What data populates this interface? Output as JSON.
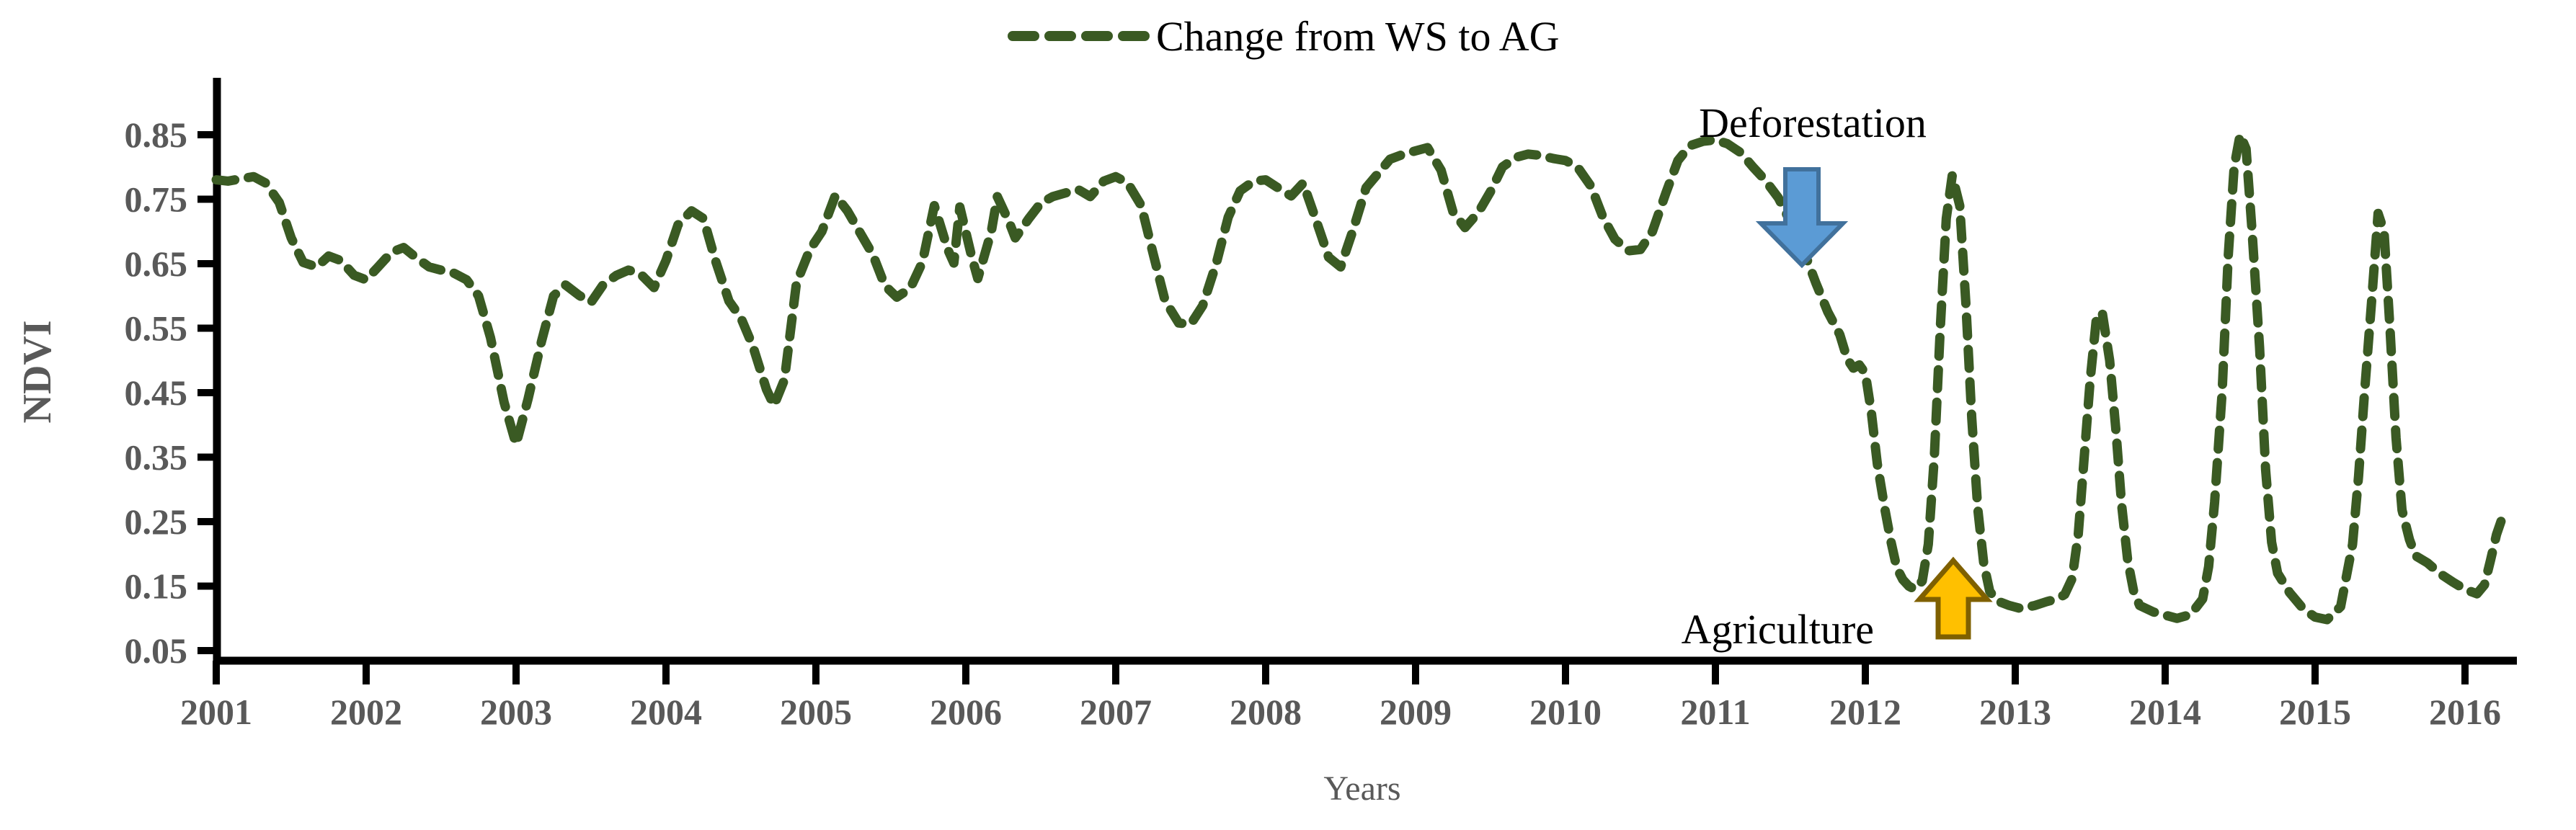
{
  "chart_data": {
    "type": "line",
    "title": "",
    "legend_label": "Change from WS to AG",
    "legend_position": "top-center",
    "xlabel": "Years",
    "ylabel": "NDVI",
    "xtick_labels": [
      "2001",
      "2002",
      "2003",
      "2004",
      "2005",
      "2006",
      "2007",
      "2008",
      "2009",
      "2010",
      "2011",
      "2012",
      "2013",
      "2014",
      "2015",
      "2016"
    ],
    "ytick_labels": [
      "0.85",
      "0.75",
      "0.65",
      "0.55",
      "0.45",
      "0.35",
      "0.25",
      "0.15",
      "0.05"
    ],
    "xlim": [
      2001,
      2016.4
    ],
    "ylim": [
      0.03,
      0.94
    ],
    "grid": false,
    "colors": {
      "series": "#3a5a23",
      "axis": "#000000",
      "tick_text": "#595959",
      "annotation_text": "#000000"
    },
    "annotations": [
      {
        "label": "Deforestation",
        "arrow": "down",
        "at_year": 2011.6,
        "fill": "#5B9BD5",
        "stroke": "#41719C"
      },
      {
        "label": "Agriculture",
        "arrow": "up",
        "at_year": 2012.6,
        "fill": "#FFC000",
        "stroke": "#7F6000"
      }
    ],
    "series": [
      {
        "name": "Change from WS to AG",
        "style": "dashed",
        "points": [
          [
            2001.0,
            0.78
          ],
          [
            2001.08,
            0.778
          ],
          [
            2001.17,
            0.782
          ],
          [
            2001.25,
            0.785
          ],
          [
            2001.33,
            0.775
          ],
          [
            2001.42,
            0.745
          ],
          [
            2001.5,
            0.69
          ],
          [
            2001.58,
            0.652
          ],
          [
            2001.67,
            0.645
          ],
          [
            2001.75,
            0.662
          ],
          [
            2001.83,
            0.655
          ],
          [
            2001.92,
            0.632
          ],
          [
            2002.0,
            0.625
          ],
          [
            2002.08,
            0.645
          ],
          [
            2002.17,
            0.668
          ],
          [
            2002.25,
            0.675
          ],
          [
            2002.33,
            0.66
          ],
          [
            2002.42,
            0.645
          ],
          [
            2002.5,
            0.64
          ],
          [
            2002.58,
            0.636
          ],
          [
            2002.67,
            0.625
          ],
          [
            2002.75,
            0.6
          ],
          [
            2002.83,
            0.535
          ],
          [
            2002.92,
            0.435
          ],
          [
            2003.0,
            0.37
          ],
          [
            2003.08,
            0.44
          ],
          [
            2003.17,
            0.53
          ],
          [
            2003.25,
            0.6
          ],
          [
            2003.33,
            0.617
          ],
          [
            2003.42,
            0.601
          ],
          [
            2003.5,
            0.59
          ],
          [
            2003.58,
            0.617
          ],
          [
            2003.67,
            0.632
          ],
          [
            2003.75,
            0.64
          ],
          [
            2003.83,
            0.634
          ],
          [
            2003.92,
            0.613
          ],
          [
            2004.0,
            0.655
          ],
          [
            2004.08,
            0.71
          ],
          [
            2004.17,
            0.732
          ],
          [
            2004.25,
            0.72
          ],
          [
            2004.33,
            0.655
          ],
          [
            2004.42,
            0.592
          ],
          [
            2004.5,
            0.566
          ],
          [
            2004.58,
            0.522
          ],
          [
            2004.67,
            0.455
          ],
          [
            2004.72,
            0.43
          ],
          [
            2004.79,
            0.47
          ],
          [
            2004.87,
            0.62
          ],
          [
            2004.96,
            0.672
          ],
          [
            2005.04,
            0.7
          ],
          [
            2005.13,
            0.756
          ],
          [
            2005.21,
            0.732
          ],
          [
            2005.29,
            0.7
          ],
          [
            2005.38,
            0.664
          ],
          [
            2005.46,
            0.616
          ],
          [
            2005.54,
            0.598
          ],
          [
            2005.63,
            0.612
          ],
          [
            2005.71,
            0.652
          ],
          [
            2005.79,
            0.74
          ],
          [
            2005.88,
            0.672
          ],
          [
            2005.92,
            0.651
          ],
          [
            2005.96,
            0.738
          ],
          [
            2006.04,
            0.66
          ],
          [
            2006.08,
            0.627
          ],
          [
            2006.17,
            0.7
          ],
          [
            2006.21,
            0.754
          ],
          [
            2006.29,
            0.714
          ],
          [
            2006.33,
            0.69
          ],
          [
            2006.42,
            0.72
          ],
          [
            2006.5,
            0.744
          ],
          [
            2006.58,
            0.754
          ],
          [
            2006.67,
            0.76
          ],
          [
            2006.75,
            0.765
          ],
          [
            2006.83,
            0.754
          ],
          [
            2006.92,
            0.778
          ],
          [
            2007.0,
            0.785
          ],
          [
            2007.08,
            0.775
          ],
          [
            2007.17,
            0.74
          ],
          [
            2007.25,
            0.665
          ],
          [
            2007.33,
            0.592
          ],
          [
            2007.42,
            0.558
          ],
          [
            2007.5,
            0.556
          ],
          [
            2007.58,
            0.585
          ],
          [
            2007.67,
            0.65
          ],
          [
            2007.75,
            0.722
          ],
          [
            2007.83,
            0.763
          ],
          [
            2007.92,
            0.778
          ],
          [
            2008.0,
            0.78
          ],
          [
            2008.08,
            0.768
          ],
          [
            2008.17,
            0.755
          ],
          [
            2008.25,
            0.775
          ],
          [
            2008.33,
            0.722
          ],
          [
            2008.42,
            0.66
          ],
          [
            2008.5,
            0.645
          ],
          [
            2008.58,
            0.7
          ],
          [
            2008.67,
            0.768
          ],
          [
            2008.75,
            0.79
          ],
          [
            2008.83,
            0.812
          ],
          [
            2008.92,
            0.82
          ],
          [
            2009.0,
            0.825
          ],
          [
            2009.08,
            0.83
          ],
          [
            2009.17,
            0.795
          ],
          [
            2009.25,
            0.73
          ],
          [
            2009.33,
            0.706
          ],
          [
            2009.42,
            0.73
          ],
          [
            2009.5,
            0.762
          ],
          [
            2009.58,
            0.8
          ],
          [
            2009.67,
            0.815
          ],
          [
            2009.75,
            0.82
          ],
          [
            2009.83,
            0.818
          ],
          [
            2009.92,
            0.813
          ],
          [
            2010.0,
            0.81
          ],
          [
            2010.08,
            0.8
          ],
          [
            2010.17,
            0.77
          ],
          [
            2010.25,
            0.722
          ],
          [
            2010.33,
            0.688
          ],
          [
            2010.42,
            0.67
          ],
          [
            2010.5,
            0.672
          ],
          [
            2010.58,
            0.7
          ],
          [
            2010.67,
            0.76
          ],
          [
            2010.75,
            0.81
          ],
          [
            2010.83,
            0.833
          ],
          [
            2010.92,
            0.84
          ],
          [
            2011.0,
            0.842
          ],
          [
            2011.08,
            0.836
          ],
          [
            2011.17,
            0.822
          ],
          [
            2011.25,
            0.8
          ],
          [
            2011.33,
            0.78
          ],
          [
            2011.42,
            0.752
          ],
          [
            2011.5,
            0.715
          ],
          [
            2011.58,
            0.676
          ],
          [
            2011.67,
            0.62
          ],
          [
            2011.75,
            0.575
          ],
          [
            2011.83,
            0.54
          ],
          [
            2011.88,
            0.502
          ],
          [
            2011.92,
            0.488
          ],
          [
            2011.96,
            0.493
          ],
          [
            2012.0,
            0.48
          ],
          [
            2012.04,
            0.42
          ],
          [
            2012.08,
            0.34
          ],
          [
            2012.13,
            0.27
          ],
          [
            2012.17,
            0.22
          ],
          [
            2012.21,
            0.178
          ],
          [
            2012.25,
            0.16
          ],
          [
            2012.29,
            0.15
          ],
          [
            2012.33,
            0.145
          ],
          [
            2012.38,
            0.158
          ],
          [
            2012.42,
            0.215
          ],
          [
            2012.46,
            0.35
          ],
          [
            2012.5,
            0.55
          ],
          [
            2012.54,
            0.72
          ],
          [
            2012.58,
            0.787
          ],
          [
            2012.63,
            0.74
          ],
          [
            2012.67,
            0.59
          ],
          [
            2012.71,
            0.41
          ],
          [
            2012.75,
            0.27
          ],
          [
            2012.79,
            0.185
          ],
          [
            2012.83,
            0.142
          ],
          [
            2012.88,
            0.127
          ],
          [
            2012.96,
            0.12
          ],
          [
            2013.04,
            0.115
          ],
          [
            2013.13,
            0.12
          ],
          [
            2013.21,
            0.126
          ],
          [
            2013.29,
            0.131
          ],
          [
            2013.33,
            0.137
          ],
          [
            2013.38,
            0.162
          ],
          [
            2013.42,
            0.23
          ],
          [
            2013.46,
            0.35
          ],
          [
            2013.5,
            0.47
          ],
          [
            2013.54,
            0.562
          ],
          [
            2013.58,
            0.575
          ],
          [
            2013.63,
            0.5
          ],
          [
            2013.67,
            0.395
          ],
          [
            2013.71,
            0.275
          ],
          [
            2013.75,
            0.19
          ],
          [
            2013.79,
            0.142
          ],
          [
            2013.83,
            0.12
          ],
          [
            2013.92,
            0.11
          ],
          [
            2014.0,
            0.105
          ],
          [
            2014.08,
            0.1
          ],
          [
            2014.17,
            0.106
          ],
          [
            2014.25,
            0.13
          ],
          [
            2014.29,
            0.18
          ],
          [
            2014.33,
            0.28
          ],
          [
            2014.38,
            0.45
          ],
          [
            2014.42,
            0.66
          ],
          [
            2014.46,
            0.8
          ],
          [
            2014.5,
            0.85
          ],
          [
            2014.54,
            0.828
          ],
          [
            2014.58,
            0.7
          ],
          [
            2014.63,
            0.52
          ],
          [
            2014.67,
            0.33
          ],
          [
            2014.71,
            0.218
          ],
          [
            2014.75,
            0.17
          ],
          [
            2014.83,
            0.14
          ],
          [
            2014.92,
            0.115
          ],
          [
            2015.0,
            0.102
          ],
          [
            2015.08,
            0.098
          ],
          [
            2015.17,
            0.118
          ],
          [
            2015.25,
            0.215
          ],
          [
            2015.29,
            0.32
          ],
          [
            2015.33,
            0.45
          ],
          [
            2015.38,
            0.6
          ],
          [
            2015.42,
            0.728
          ],
          [
            2015.46,
            0.7
          ],
          [
            2015.5,
            0.548
          ],
          [
            2015.54,
            0.38
          ],
          [
            2015.58,
            0.268
          ],
          [
            2015.63,
            0.222
          ],
          [
            2015.67,
            0.197
          ],
          [
            2015.75,
            0.186
          ],
          [
            2015.83,
            0.17
          ],
          [
            2015.92,
            0.156
          ],
          [
            2016.0,
            0.145
          ],
          [
            2016.08,
            0.138
          ],
          [
            2016.13,
            0.152
          ],
          [
            2016.17,
            0.19
          ],
          [
            2016.21,
            0.23
          ],
          [
            2016.25,
            0.257
          ]
        ]
      }
    ]
  }
}
